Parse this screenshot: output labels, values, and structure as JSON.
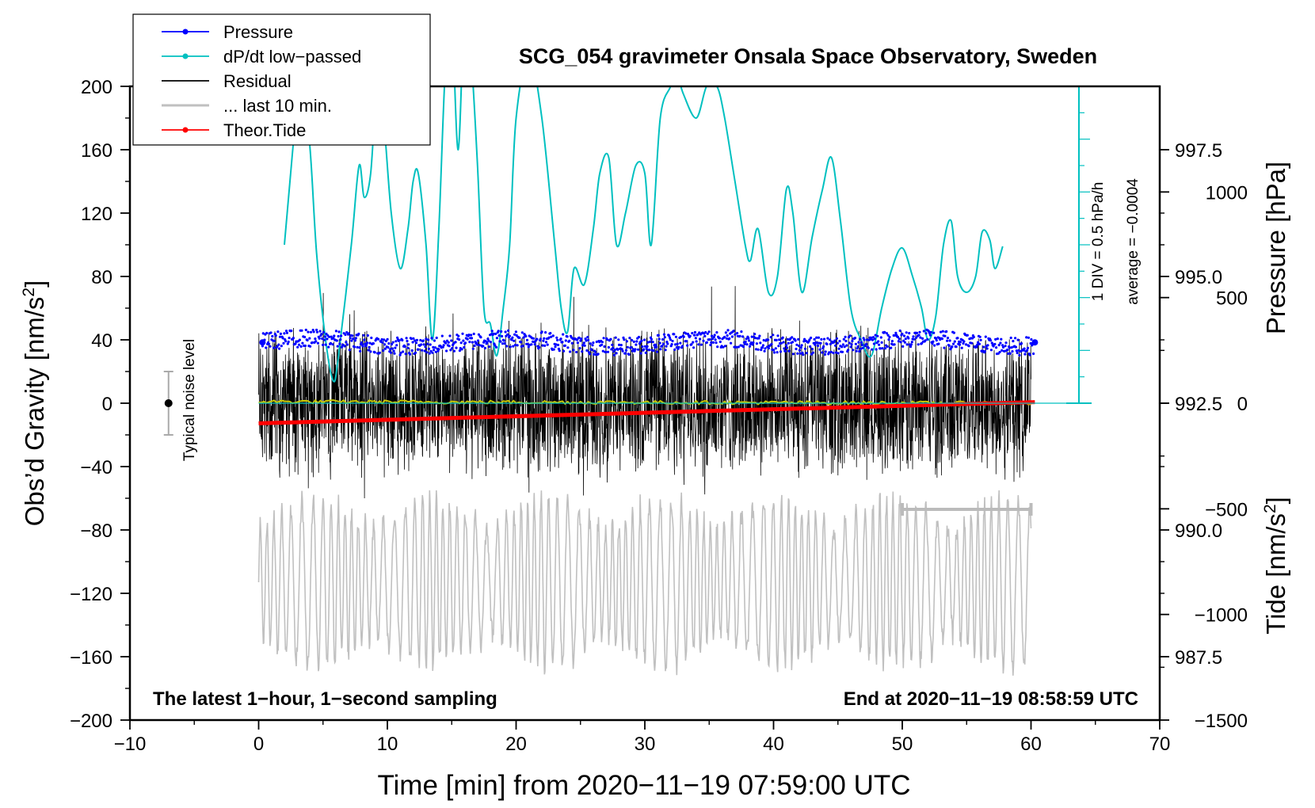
{
  "chart_data": {
    "type": "line",
    "title": "SCG_054 gravimeter Onsala Space Observatory, Sweden",
    "xlabel": "Time [min] from 2020−11−19 07:59:00 UTC",
    "ylabel_left": "Obs’d Gravity [nm/s",
    "ylabel_left_sup": "2",
    "ylabel_left_end": "]",
    "ylabel_pressure": "Pressure [hPa]",
    "ylabel_tide": "Tide [nm/s",
    "ylabel_tide_sup": "2",
    "ylabel_tide_end": "]",
    "xlim": [
      -10,
      70
    ],
    "ylim": [
      -200,
      200
    ],
    "x_ticks": [
      -10,
      0,
      10,
      20,
      30,
      40,
      50,
      60,
      70
    ],
    "x_tick_labels": [
      "−10",
      "0",
      "10",
      "20",
      "30",
      "40",
      "50",
      "60",
      "70"
    ],
    "y_ticks": [
      200,
      160,
      120,
      80,
      40,
      0,
      -40,
      -80,
      -120,
      -160,
      -200
    ],
    "y_tick_labels": [
      "200",
      "160",
      "120",
      "80",
      "40",
      "0",
      "−40",
      "−80",
      "−120",
      "−160",
      "−200"
    ],
    "pressure_axis": {
      "range": [
        986.25,
        998.75
      ],
      "ticks": [
        997.5,
        995.0,
        992.5,
        990.0,
        987.5
      ],
      "tick_labels": [
        "997.5",
        "995.0",
        "992.5",
        "990.0",
        "987.5"
      ]
    },
    "tide_axis": {
      "range": [
        -1500,
        1500
      ],
      "ticks": [
        1000,
        500,
        0,
        -500,
        -1000,
        -1500
      ],
      "tick_labels": [
        "1000",
        "500",
        "0",
        "−500",
        "−1000",
        "−1500"
      ]
    },
    "series": [
      {
        "name": "Pressure",
        "color": "#0000ff",
        "kind": "points",
        "level_hPa": 993.7,
        "spread_hPa": 0.35,
        "x_range": [
          0.3,
          60.3
        ]
      },
      {
        "name": "dP/dt low−passed",
        "color": "#00c0c0",
        "kind": "line",
        "x": [
          2,
          2.7,
          3.3,
          4.0,
          4.5,
          5.2,
          5.8,
          6.2,
          7.2,
          7.8,
          8.2,
          8.7,
          9.2,
          9.7,
          10.3,
          11.0,
          11.6,
          12.0,
          12.4,
          13.0,
          13.5,
          14.0,
          14.5,
          15.0,
          15.5,
          16.0,
          16.5,
          17.0,
          17.5,
          18.0,
          18.5,
          19.0,
          19.5,
          20.0,
          21.0,
          22.0,
          23.0,
          23.5,
          24.0,
          24.5,
          25.3,
          26.0,
          26.5,
          27.2,
          27.8,
          28.5,
          29.3,
          30.0,
          30.5,
          31.2,
          32.0,
          32.4,
          33.0,
          34.0,
          34.8,
          35.6,
          36.2,
          37.0,
          37.8,
          38.2,
          38.8,
          39.6,
          40.3,
          41.0,
          41.5,
          42.2,
          43.0,
          43.8,
          44.5,
          45.2,
          46.0,
          46.8,
          47.6,
          48.4,
          49.2,
          50.0,
          50.8,
          51.5,
          52.0,
          52.6,
          53.2,
          53.8,
          54.3,
          55.0,
          55.7,
          56.2,
          56.8,
          57.2,
          57.8
        ],
        "y": [
          100,
          165,
          220,
          160,
          95,
          40,
          14,
          30,
          100,
          150,
          130,
          145,
          200,
          180,
          120,
          85,
          110,
          140,
          145,
          100,
          40,
          110,
          210,
          240,
          160,
          250,
          220,
          150,
          60,
          50,
          30,
          60,
          100,
          180,
          220,
          180,
          100,
          60,
          45,
          85,
          75,
          110,
          145,
          155,
          100,
          120,
          150,
          145,
          100,
          180,
          200,
          210,
          195,
          180,
          200,
          200,
          180,
          140,
          100,
          90,
          110,
          70,
          80,
          135,
          120,
          70,
          105,
          135,
          155,
          115,
          60,
          40,
          30,
          60,
          85,
          98,
          80,
          60,
          40,
          55,
          100,
          115,
          80,
          70,
          80,
          108,
          103,
          85,
          99
        ]
      },
      {
        "name": "Residual",
        "color": "#000000",
        "kind": "noise",
        "x_range": [
          0,
          60
        ],
        "amplitude_nm_s2": 50
      },
      {
        "name": "... last 10 min.",
        "color": "#c0c0c0",
        "kind": "noise",
        "x_range": [
          0,
          60
        ],
        "center_nm_s2": -113,
        "amplitude_nm_s2": 45
      },
      {
        "name": "Theor.Tide",
        "color": "#ff0000",
        "kind": "line",
        "x": [
          0,
          60.3
        ],
        "tide_nm_s2": [
          -95,
          5
        ]
      },
      {
        "name": "smoothed residual",
        "color": "#c8c800",
        "kind": "line",
        "x": [
          0,
          60
        ],
        "y": [
          1,
          0
        ]
      }
    ],
    "legend": [
      {
        "label": "Pressure",
        "color": "#0000ff",
        "marker": true
      },
      {
        "label": "dP/dt low−passed",
        "color": "#00c0c0",
        "marker": true
      },
      {
        "label": "Residual",
        "color": "#000000",
        "marker": false
      },
      {
        "label": "... last 10 min.",
        "color": "#c0c0c0",
        "marker": false
      },
      {
        "label": "Theor.Tide",
        "color": "#ff0000",
        "marker": true
      }
    ],
    "legend_position": "top-left",
    "noise_level": {
      "label": "Typical noise level",
      "x": -7,
      "center": 0,
      "half_range": 20
    },
    "gray_scale_bar": {
      "x": [
        50,
        60
      ],
      "y": -67
    },
    "dpdt_scale": {
      "zero_line_pressure_hPa": 992.5,
      "div_text": "1 DIV = 0.5 hPa/h",
      "average_text": "average = −0.0004"
    },
    "annotation_left": "The latest 1−hour, 1−second sampling",
    "annotation_right": "End at 2020−11−19 08:58:59 UTC"
  }
}
